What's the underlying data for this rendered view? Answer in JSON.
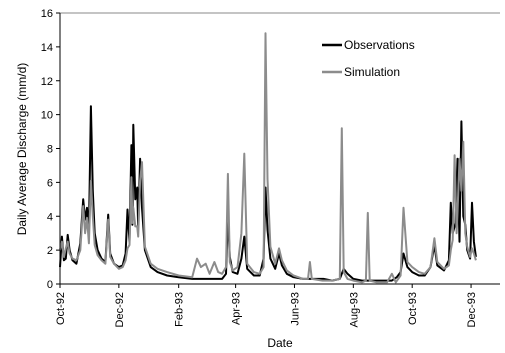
{
  "chart_data": {
    "type": "line",
    "title": "",
    "xlabel": "Date",
    "ylabel": "Daily Average Discharge (mm/d)",
    "xlim": [
      "1992-10-01",
      "1993-12-31"
    ],
    "ylim": [
      0,
      16
    ],
    "yticks": [
      0,
      2,
      4,
      6,
      8,
      10,
      12,
      14,
      16
    ],
    "xticks": [
      {
        "date": "1992-10-01",
        "label": "Oct-92"
      },
      {
        "date": "1992-12-01",
        "label": "Dec-92"
      },
      {
        "date": "1993-02-01",
        "label": "Feb-93"
      },
      {
        "date": "1993-04-01",
        "label": "Apr-93"
      },
      {
        "date": "1993-06-01",
        "label": "Jun-93"
      },
      {
        "date": "1993-08-01",
        "label": "Aug-93"
      },
      {
        "date": "1993-10-01",
        "label": "Oct-93"
      },
      {
        "date": "1993-12-01",
        "label": "Dec-93"
      }
    ],
    "grid": false,
    "legend": "top-right",
    "series": [
      {
        "name": "Observations",
        "color": "#000000",
        "points": [
          [
            "1992-10-01",
            1.0
          ],
          [
            "1992-10-03",
            2.8
          ],
          [
            "1992-10-05",
            1.4
          ],
          [
            "1992-10-07",
            1.5
          ],
          [
            "1992-10-09",
            2.9
          ],
          [
            "1992-10-11",
            2.0
          ],
          [
            "1992-10-14",
            1.4
          ],
          [
            "1992-10-18",
            1.2
          ],
          [
            "1992-10-22",
            2.4
          ],
          [
            "1992-10-25",
            5.0
          ],
          [
            "1992-10-27",
            3.8
          ],
          [
            "1992-10-29",
            4.5
          ],
          [
            "1992-10-31",
            3.0
          ],
          [
            "1992-11-02",
            10.5
          ],
          [
            "1992-11-04",
            5.5
          ],
          [
            "1992-11-06",
            3.0
          ],
          [
            "1992-11-09",
            2.0
          ],
          [
            "1992-11-13",
            1.5
          ],
          [
            "1992-11-17",
            1.3
          ],
          [
            "1992-11-20",
            4.1
          ],
          [
            "1992-11-22",
            1.8
          ],
          [
            "1992-11-26",
            1.2
          ],
          [
            "1992-12-01",
            1.0
          ],
          [
            "1992-12-05",
            1.1
          ],
          [
            "1992-12-08",
            1.8
          ],
          [
            "1992-12-10",
            4.4
          ],
          [
            "1992-12-12",
            2.5
          ],
          [
            "1992-12-14",
            8.2
          ],
          [
            "1992-12-15",
            3.5
          ],
          [
            "1992-12-16",
            9.4
          ],
          [
            "1992-12-18",
            5.0
          ],
          [
            "1992-12-20",
            5.7
          ],
          [
            "1992-12-21",
            3.3
          ],
          [
            "1992-12-23",
            7.4
          ],
          [
            "1992-12-25",
            4.5
          ],
          [
            "1992-12-28",
            2.0
          ],
          [
            "1993-01-03",
            1.0
          ],
          [
            "1993-01-10",
            0.7
          ],
          [
            "1993-01-20",
            0.5
          ],
          [
            "1993-02-01",
            0.4
          ],
          [
            "1993-02-15",
            0.3
          ],
          [
            "1993-03-01",
            0.3
          ],
          [
            "1993-03-10",
            0.3
          ],
          [
            "1993-03-18",
            0.3
          ],
          [
            "1993-03-22",
            0.6
          ],
          [
            "1993-03-24",
            4.1
          ],
          [
            "1993-03-26",
            1.6
          ],
          [
            "1993-03-29",
            0.7
          ],
          [
            "1993-04-03",
            0.6
          ],
          [
            "1993-04-07",
            1.5
          ],
          [
            "1993-04-10",
            2.8
          ],
          [
            "1993-04-13",
            0.9
          ],
          [
            "1993-04-20",
            0.5
          ],
          [
            "1993-04-26",
            0.5
          ],
          [
            "1993-04-30",
            1.5
          ],
          [
            "1993-05-02",
            5.7
          ],
          [
            "1993-05-04",
            3.2
          ],
          [
            "1993-05-07",
            1.5
          ],
          [
            "1993-05-12",
            0.9
          ],
          [
            "1993-05-16",
            1.8
          ],
          [
            "1993-05-19",
            1.1
          ],
          [
            "1993-05-24",
            0.6
          ],
          [
            "1993-05-31",
            0.4
          ],
          [
            "1993-06-10",
            0.3
          ],
          [
            "1993-06-20",
            0.3
          ],
          [
            "1993-07-01",
            0.3
          ],
          [
            "1993-07-10",
            0.2
          ],
          [
            "1993-07-18",
            0.3
          ],
          [
            "1993-07-22",
            0.9
          ],
          [
            "1993-07-26",
            0.6
          ],
          [
            "1993-08-01",
            0.3
          ],
          [
            "1993-08-10",
            0.2
          ],
          [
            "1993-08-20",
            0.2
          ],
          [
            "1993-09-01",
            0.2
          ],
          [
            "1993-09-10",
            0.2
          ],
          [
            "1993-09-15",
            0.4
          ],
          [
            "1993-09-19",
            0.7
          ],
          [
            "1993-09-22",
            1.8
          ],
          [
            "1993-09-26",
            1.0
          ],
          [
            "1993-10-01",
            0.7
          ],
          [
            "1993-10-08",
            0.5
          ],
          [
            "1993-10-14",
            0.5
          ],
          [
            "1993-10-20",
            1.0
          ],
          [
            "1993-10-24",
            2.3
          ],
          [
            "1993-10-27",
            1.1
          ],
          [
            "1993-11-03",
            0.8
          ],
          [
            "1993-11-08",
            1.4
          ],
          [
            "1993-11-10",
            4.8
          ],
          [
            "1993-11-12",
            3.0
          ],
          [
            "1993-11-15",
            3.6
          ],
          [
            "1993-11-17",
            7.4
          ],
          [
            "1993-11-19",
            2.5
          ],
          [
            "1993-11-21",
            9.6
          ],
          [
            "1993-11-23",
            4.0
          ],
          [
            "1993-11-25",
            3.5
          ],
          [
            "1993-11-27",
            2.0
          ],
          [
            "1993-11-30",
            1.5
          ],
          [
            "1993-12-02",
            4.8
          ],
          [
            "1993-12-04",
            2.5
          ],
          [
            "1993-12-06",
            1.6
          ]
        ]
      },
      {
        "name": "Simulation",
        "color": "#8c8c8c",
        "points": [
          [
            "1992-10-01",
            2.0
          ],
          [
            "1992-10-03",
            2.5
          ],
          [
            "1992-10-05",
            1.6
          ],
          [
            "1992-10-07",
            2.1
          ],
          [
            "1992-10-09",
            2.5
          ],
          [
            "1992-10-11",
            1.8
          ],
          [
            "1992-10-14",
            1.5
          ],
          [
            "1992-10-18",
            1.4
          ],
          [
            "1992-10-22",
            2.0
          ],
          [
            "1992-10-25",
            4.6
          ],
          [
            "1992-10-27",
            3.0
          ],
          [
            "1992-10-29",
            3.9
          ],
          [
            "1992-10-31",
            2.4
          ],
          [
            "1992-11-02",
            6.1
          ],
          [
            "1992-11-04",
            4.0
          ],
          [
            "1992-11-06",
            2.3
          ],
          [
            "1992-11-09",
            1.7
          ],
          [
            "1992-11-13",
            1.4
          ],
          [
            "1992-11-17",
            1.2
          ],
          [
            "1992-11-20",
            3.8
          ],
          [
            "1992-11-22",
            1.6
          ],
          [
            "1992-11-26",
            1.2
          ],
          [
            "1992-12-01",
            0.9
          ],
          [
            "1992-12-05",
            1.0
          ],
          [
            "1992-12-08",
            1.4
          ],
          [
            "1992-12-10",
            2.1
          ],
          [
            "1992-12-12",
            2.3
          ],
          [
            "1992-12-14",
            6.3
          ],
          [
            "1992-12-15",
            3.6
          ],
          [
            "1992-12-16",
            4.5
          ],
          [
            "1992-12-18",
            3.4
          ],
          [
            "1992-12-20",
            3.4
          ],
          [
            "1992-12-21",
            2.8
          ],
          [
            "1992-12-23",
            6.1
          ],
          [
            "1992-12-25",
            7.2
          ],
          [
            "1992-12-28",
            2.2
          ],
          [
            "1993-01-03",
            1.2
          ],
          [
            "1993-01-10",
            0.9
          ],
          [
            "1993-01-20",
            0.7
          ],
          [
            "1993-02-01",
            0.5
          ],
          [
            "1993-02-15",
            0.4
          ],
          [
            "1993-02-20",
            1.5
          ],
          [
            "1993-02-24",
            1.0
          ],
          [
            "1993-03-01",
            1.2
          ],
          [
            "1993-03-05",
            0.6
          ],
          [
            "1993-03-10",
            1.3
          ],
          [
            "1993-03-14",
            0.7
          ],
          [
            "1993-03-18",
            0.6
          ],
          [
            "1993-03-22",
            1.0
          ],
          [
            "1993-03-24",
            6.5
          ],
          [
            "1993-03-26",
            1.3
          ],
          [
            "1993-03-29",
            0.8
          ],
          [
            "1993-04-03",
            1.0
          ],
          [
            "1993-04-07",
            3.0
          ],
          [
            "1993-04-10",
            7.7
          ],
          [
            "1993-04-13",
            1.2
          ],
          [
            "1993-04-20",
            0.7
          ],
          [
            "1993-04-26",
            0.6
          ],
          [
            "1993-04-30",
            1.0
          ],
          [
            "1993-05-02",
            14.8
          ],
          [
            "1993-05-04",
            6.2
          ],
          [
            "1993-05-07",
            2.2
          ],
          [
            "1993-05-12",
            1.2
          ],
          [
            "1993-05-16",
            2.1
          ],
          [
            "1993-05-19",
            1.4
          ],
          [
            "1993-05-24",
            0.8
          ],
          [
            "1993-05-31",
            0.5
          ],
          [
            "1993-06-10",
            0.3
          ],
          [
            "1993-06-15",
            0.3
          ],
          [
            "1993-06-17",
            1.3
          ],
          [
            "1993-06-19",
            0.3
          ],
          [
            "1993-06-30",
            0.2
          ],
          [
            "1993-07-10",
            0.2
          ],
          [
            "1993-07-18",
            0.3
          ],
          [
            "1993-07-20",
            9.2
          ],
          [
            "1993-07-22",
            0.7
          ],
          [
            "1993-07-26",
            0.3
          ],
          [
            "1993-08-01",
            0.2
          ],
          [
            "1993-08-10",
            0.1
          ],
          [
            "1993-08-14",
            0.2
          ],
          [
            "1993-08-16",
            4.2
          ],
          [
            "1993-08-18",
            0.2
          ],
          [
            "1993-08-25",
            0.1
          ],
          [
            "1993-09-05",
            0.1
          ],
          [
            "1993-09-10",
            0.6
          ],
          [
            "1993-09-14",
            0.1
          ],
          [
            "1993-09-19",
            0.5
          ],
          [
            "1993-09-22",
            4.5
          ],
          [
            "1993-09-26",
            1.3
          ],
          [
            "1993-10-01",
            1.0
          ],
          [
            "1993-10-08",
            0.7
          ],
          [
            "1993-10-14",
            0.6
          ],
          [
            "1993-10-20",
            1.0
          ],
          [
            "1993-10-24",
            2.7
          ],
          [
            "1993-10-27",
            1.3
          ],
          [
            "1993-11-03",
            0.9
          ],
          [
            "1993-11-08",
            1.1
          ],
          [
            "1993-11-10",
            2.0
          ],
          [
            "1993-11-12",
            2.6
          ],
          [
            "1993-11-14",
            7.6
          ],
          [
            "1993-11-16",
            3.0
          ],
          [
            "1993-11-17",
            4.2
          ],
          [
            "1993-11-19",
            7.4
          ],
          [
            "1993-11-21",
            5.5
          ],
          [
            "1993-11-23",
            8.4
          ],
          [
            "1993-11-25",
            3.0
          ],
          [
            "1993-11-27",
            2.2
          ],
          [
            "1993-11-30",
            1.6
          ],
          [
            "1993-12-02",
            2.1
          ],
          [
            "1993-12-04",
            1.8
          ],
          [
            "1993-12-06",
            1.4
          ]
        ]
      }
    ]
  }
}
